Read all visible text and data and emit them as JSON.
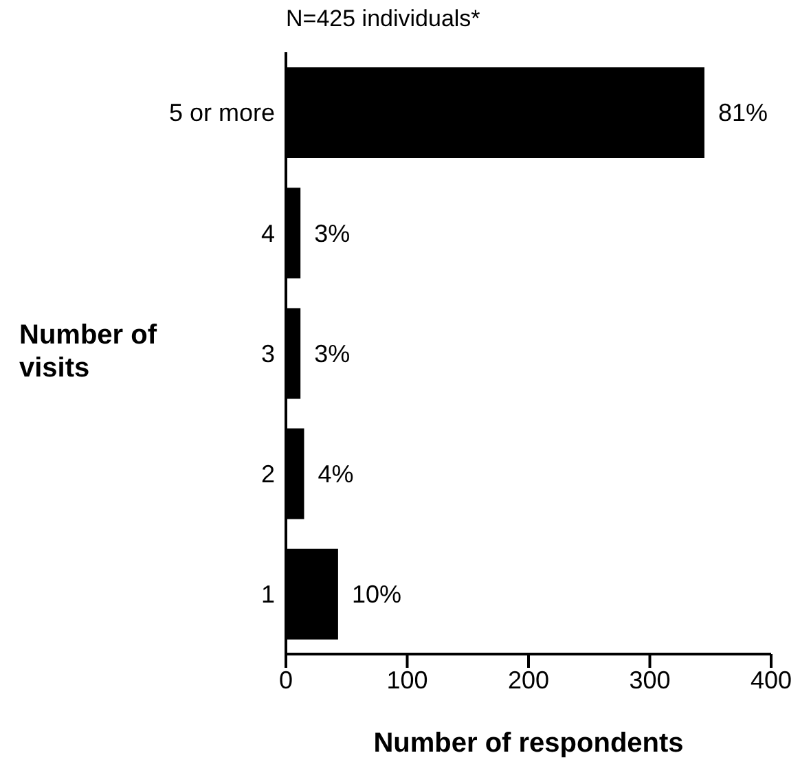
{
  "chart_data": {
    "type": "bar",
    "orientation": "horizontal",
    "title": "N=425 individuals*",
    "xlabel": "Number of respondents",
    "ylabel": "Number of visits",
    "categories": [
      "5 or more",
      "4",
      "3",
      "2",
      "1"
    ],
    "values": [
      345,
      12,
      12,
      15,
      43
    ],
    "annotations": [
      {
        "text": "81%",
        "x": 345,
        "y": "5 or more"
      },
      {
        "text": "3%",
        "x": 12,
        "y": "4"
      },
      {
        "text": "3%",
        "x": 12,
        "y": "3"
      },
      {
        "text": "4%",
        "x": 15,
        "y": "2"
      },
      {
        "text": "10%",
        "x": 43,
        "y": "1"
      }
    ],
    "color": "#000000",
    "xlim": [
      0,
      400
    ],
    "xticks": [
      0,
      100,
      200,
      300,
      400
    ],
    "grid": false
  }
}
